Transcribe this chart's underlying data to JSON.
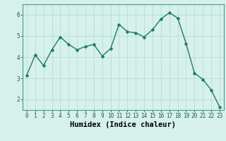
{
  "x": [
    0,
    1,
    2,
    3,
    4,
    5,
    6,
    7,
    8,
    9,
    10,
    11,
    12,
    13,
    14,
    15,
    16,
    17,
    18,
    19,
    20,
    21,
    22,
    23
  ],
  "y": [
    3.15,
    4.1,
    3.6,
    4.35,
    4.95,
    4.6,
    4.35,
    4.5,
    4.6,
    4.05,
    4.4,
    5.55,
    5.2,
    5.15,
    4.95,
    5.3,
    5.8,
    6.1,
    5.85,
    4.65,
    3.25,
    2.95,
    2.45,
    1.65
  ],
  "xlabel": "Humidex (Indice chaleur)",
  "ylim": [
    1.5,
    6.5
  ],
  "xlim": [
    -0.5,
    23.5
  ],
  "yticks": [
    2,
    3,
    4,
    5,
    6
  ],
  "xticks": [
    0,
    1,
    2,
    3,
    4,
    5,
    6,
    7,
    8,
    9,
    10,
    11,
    12,
    13,
    14,
    15,
    16,
    17,
    18,
    19,
    20,
    21,
    22,
    23
  ],
  "line_color": "#1f7a63",
  "marker_color": "#1f7a63",
  "bg_color": "#d6f0eb",
  "grid_color": "#b8ddd7",
  "tick_label_fontsize": 5.5,
  "xlabel_fontsize": 7.5,
  "marker_size": 2.5,
  "line_width": 1.0
}
